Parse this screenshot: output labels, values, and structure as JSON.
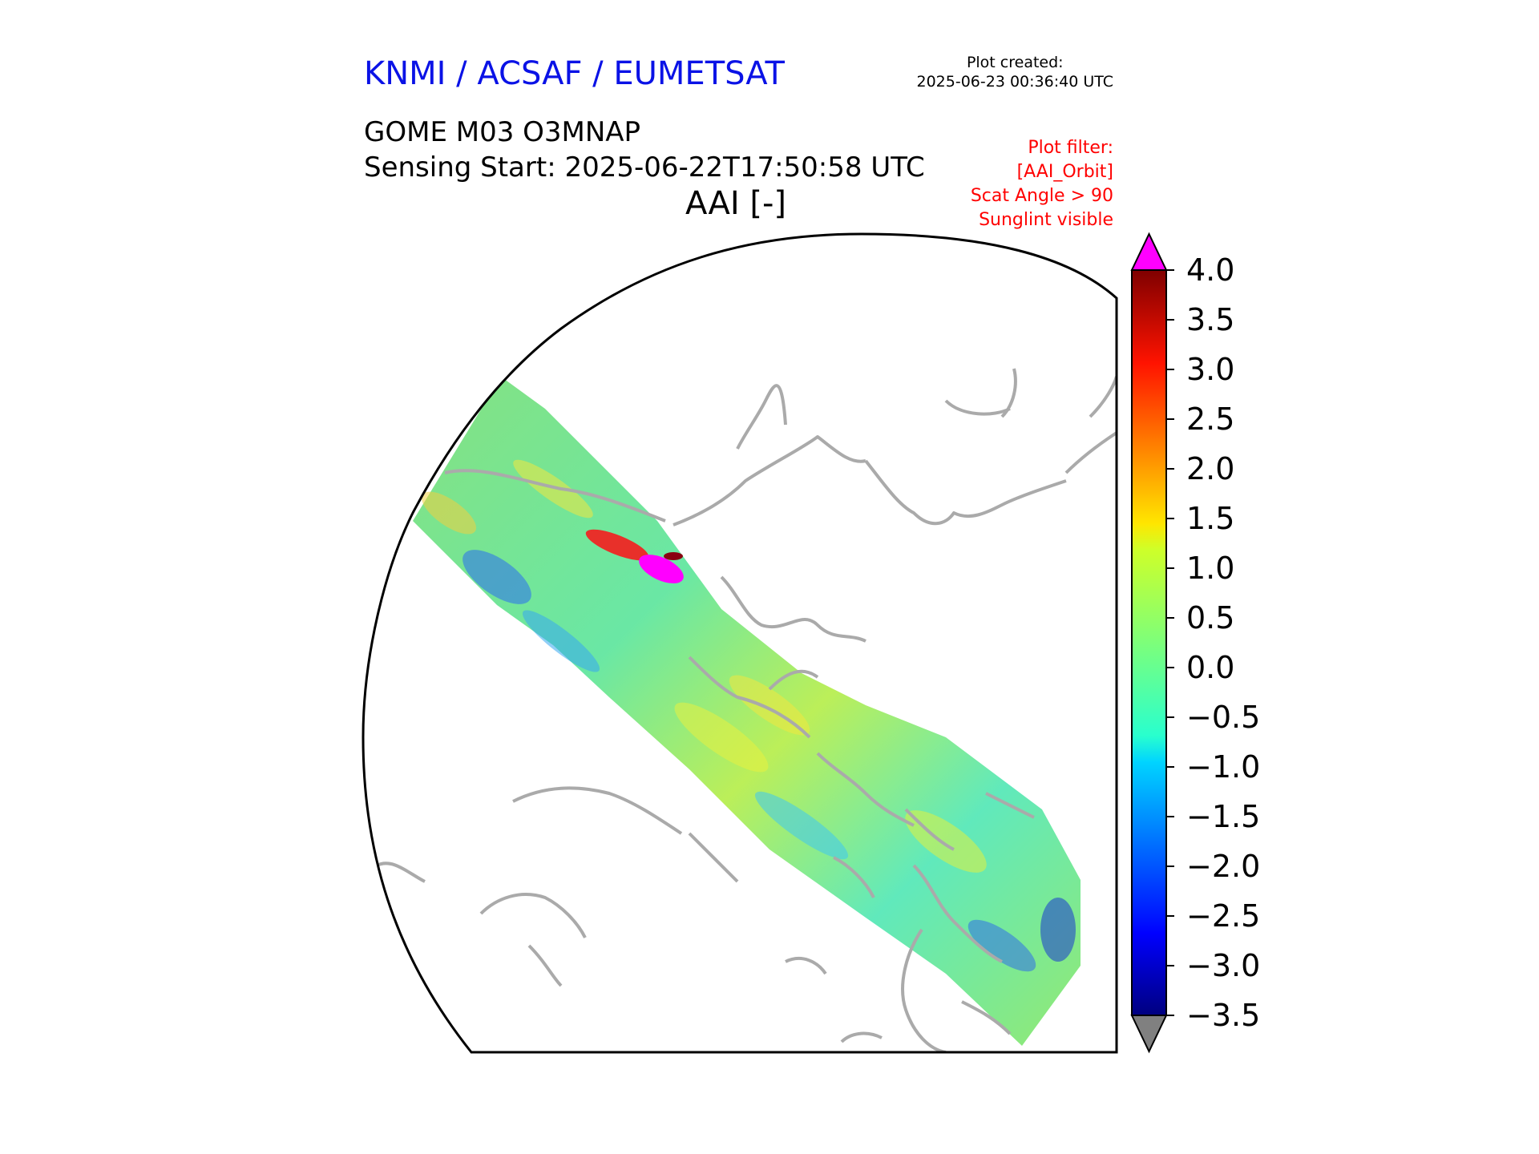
{
  "header": {
    "organization": "KNMI / ACSAF / EUMETSAT",
    "created_label": "Plot created:",
    "created_value": "2025-06-23 00:36:40 UTC"
  },
  "plot": {
    "product": "GOME M03 O3MNAP",
    "sensing_start": "Sensing Start: 2025-06-22T17:50:58 UTC",
    "variable": "AAI [-]"
  },
  "filter": {
    "title": "Plot filter:",
    "line1": "[AAI_Orbit]",
    "line2": "Scat Angle > 90",
    "line3": "Sunglint visible"
  },
  "colorbar": {
    "min": -3.5,
    "max": 4.0,
    "ticks": [
      "4.0",
      "3.5",
      "3.0",
      "2.5",
      "2.0",
      "1.5",
      "1.0",
      "0.5",
      "0.0",
      "−0.5",
      "−1.0",
      "−1.5",
      "−2.0",
      "−2.5",
      "−3.0",
      "−3.5"
    ],
    "over_color": "#ff00ff",
    "under_color": "#808080",
    "colormap": "jet"
  },
  "colors": {
    "coastline": "#aaaaaa",
    "map_border": "#000000",
    "high_aai": "#ff00ff"
  }
}
